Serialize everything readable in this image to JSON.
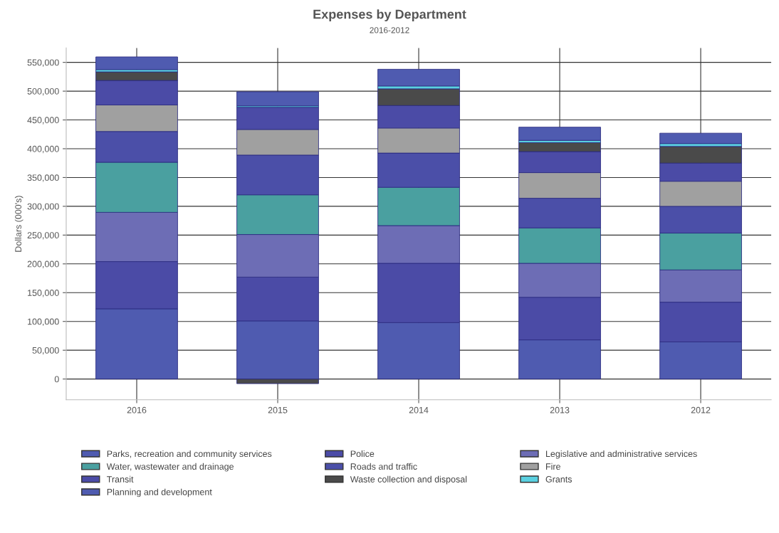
{
  "chart_data": {
    "type": "bar",
    "stacked": true,
    "title": "Expenses by Department",
    "subtitle": "2016-2012",
    "ylabel": "Dollars (000's)",
    "categories": [
      "2016",
      "2015",
      "2014",
      "2013",
      "2012"
    ],
    "series": [
      {
        "name": "Parks, recreation and community services",
        "color": "#4f5bb0",
        "values": [
          122000,
          101000,
          98000,
          68000,
          64500
        ]
      },
      {
        "name": "Police",
        "color": "#4b4ba6",
        "values": [
          82000,
          76000,
          103000,
          74000,
          69000
        ]
      },
      {
        "name": "Legislative and administrative services",
        "color": "#6d6db5",
        "values": [
          85500,
          74000,
          65500,
          59000,
          56000
        ]
      },
      {
        "name": "Water, wastewater and drainage",
        "color": "#4aa0a0",
        "values": [
          87000,
          69000,
          66500,
          61500,
          64000
        ]
      },
      {
        "name": "Roads and traffic",
        "color": "#4b4fa8",
        "values": [
          53500,
          69000,
          59500,
          51500,
          46500
        ]
      },
      {
        "name": "Fire",
        "color": "#a0a0a0",
        "values": [
          46000,
          44500,
          43500,
          44500,
          43500
        ]
      },
      {
        "name": "Transit",
        "color": "#4b4ba6",
        "values": [
          42500,
          38500,
          39000,
          36500,
          31500
        ]
      },
      {
        "name": "Waste collection and disposal",
        "color": "#4a4a4a",
        "values": [
          15000,
          -8000,
          29000,
          15500,
          29000
        ]
      },
      {
        "name": "Grants",
        "color": "#5ad0e0",
        "values": [
          4000,
          2500,
          5000,
          4000,
          5000
        ]
      },
      {
        "name": "Planning and development",
        "color": "#4f5bb0",
        "values": [
          22000,
          24500,
          29000,
          23000,
          18000
        ]
      }
    ],
    "ylim": [
      -36000,
      575000
    ],
    "yticks": [
      0,
      {
        "value": 50000,
        "label": "50,000"
      },
      {
        "value": 100000,
        "label": "100,000"
      },
      {
        "value": 150000,
        "label": "150,000"
      },
      {
        "value": 200000,
        "label": "200,000"
      },
      {
        "value": 250000,
        "label": "250,000"
      },
      {
        "value": 300000,
        "label": "300,000"
      },
      {
        "value": 350000,
        "label": "350,000"
      },
      {
        "value": 400000,
        "label": "400,000"
      },
      {
        "value": 450000,
        "label": "450,000"
      },
      {
        "value": 500000,
        "label": "500,000"
      },
      {
        "value": 550000,
        "label": "550,000"
      }
    ],
    "grid": true,
    "legend": "bottom"
  }
}
